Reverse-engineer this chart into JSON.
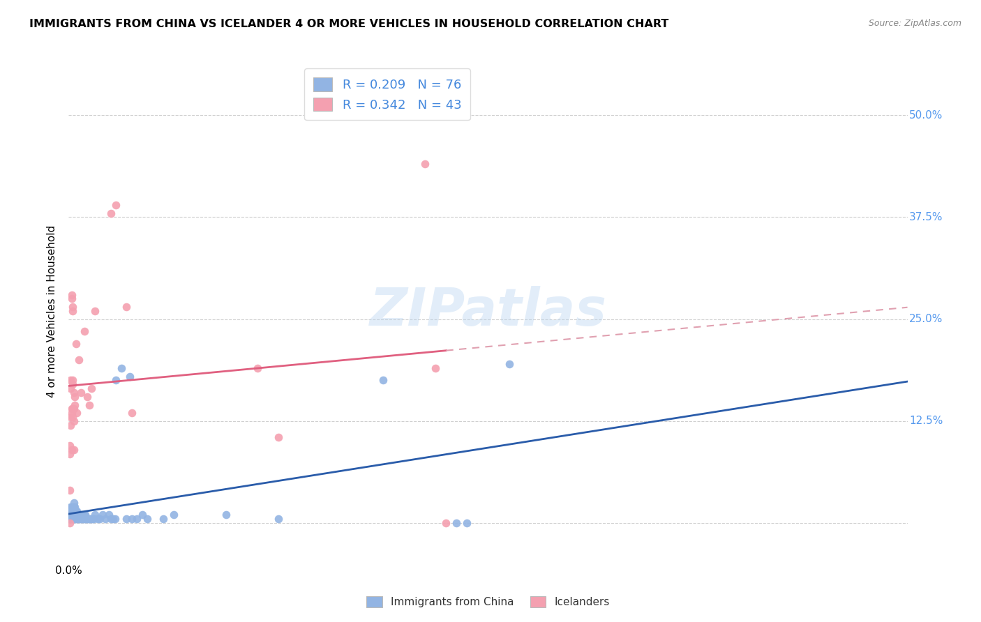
{
  "title": "IMMIGRANTS FROM CHINA VS ICELANDER 4 OR MORE VEHICLES IN HOUSEHOLD CORRELATION CHART",
  "source": "Source: ZipAtlas.com",
  "ylabel": "4 or more Vehicles in Household",
  "yticks": [
    0.0,
    0.125,
    0.25,
    0.375,
    0.5
  ],
  "ytick_labels": [
    "",
    "12.5%",
    "25.0%",
    "37.5%",
    "50.0%"
  ],
  "xlim": [
    0.0,
    0.8
  ],
  "ylim": [
    -0.045,
    0.565
  ],
  "legend_blue_label": "R = 0.209   N = 76",
  "legend_pink_label": "R = 0.342   N = 43",
  "watermark": "ZIPatlas",
  "blue_color": "#92b4e3",
  "pink_color": "#f4a0b0",
  "blue_line_color": "#2a5caa",
  "pink_line_color": "#e06080",
  "pink_line_dash_color": "#e0a0b0",
  "blue_scatter": [
    [
      0.001,
      0.005
    ],
    [
      0.001,
      0.01
    ],
    [
      0.002,
      0.005
    ],
    [
      0.002,
      0.01
    ],
    [
      0.002,
      0.02
    ],
    [
      0.003,
      0.005
    ],
    [
      0.003,
      0.01
    ],
    [
      0.003,
      0.015
    ],
    [
      0.003,
      0.02
    ],
    [
      0.004,
      0.005
    ],
    [
      0.004,
      0.01
    ],
    [
      0.004,
      0.015
    ],
    [
      0.004,
      0.02
    ],
    [
      0.005,
      0.005
    ],
    [
      0.005,
      0.01
    ],
    [
      0.005,
      0.015
    ],
    [
      0.005,
      0.02
    ],
    [
      0.005,
      0.025
    ],
    [
      0.006,
      0.005
    ],
    [
      0.006,
      0.01
    ],
    [
      0.006,
      0.015
    ],
    [
      0.006,
      0.02
    ],
    [
      0.007,
      0.005
    ],
    [
      0.007,
      0.01
    ],
    [
      0.007,
      0.015
    ],
    [
      0.008,
      0.005
    ],
    [
      0.008,
      0.01
    ],
    [
      0.008,
      0.015
    ],
    [
      0.009,
      0.005
    ],
    [
      0.009,
      0.01
    ],
    [
      0.01,
      0.005
    ],
    [
      0.01,
      0.01
    ],
    [
      0.011,
      0.005
    ],
    [
      0.011,
      0.01
    ],
    [
      0.012,
      0.005
    ],
    [
      0.012,
      0.01
    ],
    [
      0.013,
      0.005
    ],
    [
      0.013,
      0.01
    ],
    [
      0.014,
      0.005
    ],
    [
      0.015,
      0.005
    ],
    [
      0.015,
      0.01
    ],
    [
      0.016,
      0.005
    ],
    [
      0.016,
      0.01
    ],
    [
      0.017,
      0.005
    ],
    [
      0.018,
      0.005
    ],
    [
      0.019,
      0.005
    ],
    [
      0.02,
      0.005
    ],
    [
      0.021,
      0.005
    ],
    [
      0.022,
      0.005
    ],
    [
      0.023,
      0.005
    ],
    [
      0.024,
      0.005
    ],
    [
      0.025,
      0.01
    ],
    [
      0.028,
      0.005
    ],
    [
      0.03,
      0.005
    ],
    [
      0.032,
      0.01
    ],
    [
      0.035,
      0.005
    ],
    [
      0.038,
      0.01
    ],
    [
      0.04,
      0.005
    ],
    [
      0.042,
      0.005
    ],
    [
      0.044,
      0.005
    ],
    [
      0.045,
      0.175
    ],
    [
      0.05,
      0.19
    ],
    [
      0.055,
      0.005
    ],
    [
      0.058,
      0.18
    ],
    [
      0.06,
      0.005
    ],
    [
      0.065,
      0.005
    ],
    [
      0.07,
      0.01
    ],
    [
      0.075,
      0.005
    ],
    [
      0.09,
      0.005
    ],
    [
      0.1,
      0.01
    ],
    [
      0.15,
      0.01
    ],
    [
      0.2,
      0.005
    ],
    [
      0.3,
      0.175
    ],
    [
      0.37,
      0.0
    ],
    [
      0.38,
      0.0
    ],
    [
      0.42,
      0.195
    ]
  ],
  "pink_scatter": [
    [
      0.001,
      0.04
    ],
    [
      0.001,
      0.085
    ],
    [
      0.001,
      0.095
    ],
    [
      0.002,
      0.12
    ],
    [
      0.002,
      0.13
    ],
    [
      0.002,
      0.165
    ],
    [
      0.002,
      0.175
    ],
    [
      0.003,
      0.09
    ],
    [
      0.003,
      0.135
    ],
    [
      0.003,
      0.14
    ],
    [
      0.003,
      0.275
    ],
    [
      0.003,
      0.28
    ],
    [
      0.004,
      0.13
    ],
    [
      0.004,
      0.14
    ],
    [
      0.004,
      0.17
    ],
    [
      0.004,
      0.175
    ],
    [
      0.004,
      0.26
    ],
    [
      0.004,
      0.265
    ],
    [
      0.005,
      0.09
    ],
    [
      0.005,
      0.125
    ],
    [
      0.005,
      0.14
    ],
    [
      0.005,
      0.16
    ],
    [
      0.006,
      0.145
    ],
    [
      0.006,
      0.155
    ],
    [
      0.007,
      0.22
    ],
    [
      0.008,
      0.135
    ],
    [
      0.01,
      0.2
    ],
    [
      0.012,
      0.16
    ],
    [
      0.015,
      0.235
    ],
    [
      0.018,
      0.155
    ],
    [
      0.02,
      0.145
    ],
    [
      0.022,
      0.165
    ],
    [
      0.025,
      0.26
    ],
    [
      0.04,
      0.38
    ],
    [
      0.045,
      0.39
    ],
    [
      0.055,
      0.265
    ],
    [
      0.06,
      0.135
    ],
    [
      0.18,
      0.19
    ],
    [
      0.2,
      0.105
    ],
    [
      0.34,
      0.44
    ],
    [
      0.35,
      0.19
    ],
    [
      0.36,
      0.0
    ],
    [
      0.001,
      0.0
    ]
  ]
}
